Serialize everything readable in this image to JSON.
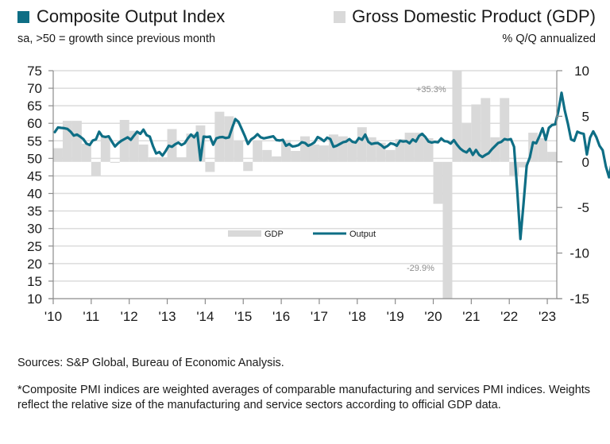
{
  "header": {
    "left_title": "Composite Output Index",
    "left_subtitle": "sa, >50 = growth since previous month",
    "right_title": "Gross Domestic Product (GDP)",
    "right_subtitle": "% Q/Q annualized"
  },
  "footer": {
    "sources": "Sources: S&P Global, Bureau of Economic Analysis.",
    "note": "*Composite PMI indices are weighted averages of comparable manufacturing and services PMI indices. Weights reflect the relative size of the manufacturing and service sectors according to official GDP data."
  },
  "colors": {
    "output": "#0e6e85",
    "gdp": "#d9d9d9",
    "grid": "#dcdcdc",
    "axis": "#8c8c8c"
  },
  "chart_data": {
    "type": "bar+line",
    "title": "Composite Output Index vs Gross Domestic Product (GDP)",
    "legend": [
      "GDP",
      "Output"
    ],
    "legend_placement": "center",
    "grid": true,
    "x_tick_labels": [
      "'10",
      "'11",
      "'12",
      "'13",
      "'14",
      "'15",
      "'16",
      "'17",
      "'18",
      "'19",
      "'20",
      "'21",
      "'22",
      "'23"
    ],
    "left_axis": {
      "label": "Composite Output Index (sa, >50 = growth)",
      "ylim": [
        10,
        75
      ],
      "ticks": [
        75,
        70,
        65,
        60,
        55,
        50,
        45,
        40,
        35,
        30,
        25,
        20,
        15,
        10
      ]
    },
    "right_axis": {
      "label": "GDP % Q/Q annualized",
      "ylim": [
        -15,
        10
      ],
      "ticks": [
        10,
        5,
        0,
        -5,
        -10,
        -15
      ]
    },
    "annotations": [
      {
        "text": "+35.3%",
        "refers_to": "GDP 2020 Q3"
      },
      {
        "text": "-29.9%",
        "refers_to": "GDP 2020 Q2"
      }
    ],
    "series": [
      {
        "name": "GDP",
        "kind": "bar",
        "axis": "right",
        "frequency": "quarterly",
        "start": "2010-Q1",
        "values": [
          1.5,
          4.5,
          4.5,
          2.0,
          -1.5,
          2.9,
          -0.1,
          4.6,
          3.4,
          1.9,
          0.5,
          0.5,
          3.6,
          0.5,
          3.1,
          4.0,
          -1.1,
          5.5,
          5.0,
          2.3,
          -1.0,
          2.3,
          1.3,
          0.6,
          2.4,
          1.2,
          2.8,
          1.9,
          1.8,
          3.0,
          2.8,
          2.3,
          3.8,
          2.7,
          2.1,
          1.3,
          2.5,
          3.2,
          3.2,
          2.6,
          -4.6,
          -29.9,
          35.3,
          4.2,
          6.3,
          7.0,
          2.7,
          7.0,
          -1.6,
          -0.6,
          3.2,
          2.6,
          1.1
        ],
        "label_overrides": {
          "2020-Q2": "-29.9%",
          "2020-Q3": "+35.3%"
        }
      },
      {
        "name": "Output",
        "kind": "line",
        "axis": "left",
        "frequency": "monthly",
        "start": "2010-01",
        "values": [
          57.5,
          58.8,
          58.7,
          58.6,
          58.4,
          57.6,
          56.5,
          56.8,
          56.2,
          55.5,
          54.2,
          53.8,
          55.1,
          55.4,
          57.6,
          56.3,
          56.1,
          56.3,
          54.8,
          53.4,
          54.3,
          55.0,
          55.5,
          56.0,
          55.3,
          56.5,
          57.6,
          57.0,
          58.2,
          56.6,
          56.2,
          53.5,
          51.4,
          51.8,
          50.8,
          52.1,
          53.6,
          53.3,
          54.0,
          54.5,
          53.8,
          54.3,
          55.7,
          56.8,
          56.0,
          57.3,
          49.5,
          56.2,
          56.1,
          56.2,
          53.9,
          55.7,
          56.0,
          56.1,
          55.8,
          56.0,
          58.7,
          61.2,
          60.4,
          58.4,
          56.4,
          54.1,
          55.4,
          56.0,
          56.9,
          56.0,
          55.7,
          55.9,
          56.1,
          56.3,
          55.2,
          55.1,
          55.3,
          53.6,
          54.1,
          53.4,
          53.5,
          53.8,
          54.6,
          54.4,
          53.6,
          54.0,
          54.6,
          56.1,
          55.6,
          54.9,
          55.9,
          55.5,
          53.3,
          53.6,
          54.1,
          54.6,
          54.8,
          55.5,
          54.7,
          54.5,
          55.8,
          55.3,
          56.8,
          54.7,
          54.1,
          54.3,
          54.4,
          53.8,
          53.0,
          53.5,
          54.3,
          54.1,
          53.6,
          55.0,
          54.8,
          54.9,
          54.3,
          55.4,
          54.8,
          56.4,
          57.0,
          56.1,
          54.8,
          54.5,
          54.7,
          54.6,
          55.7,
          54.9,
          54.8,
          54.2,
          55.2,
          53.9,
          52.8,
          52.1,
          51.7,
          52.7,
          51.0,
          52.4,
          51.0,
          50.4,
          51.0,
          51.5,
          52.6,
          53.5,
          54.4,
          54.7,
          55.5,
          55.3,
          55.5,
          53.3,
          40.9,
          27.0,
          37.0,
          47.9,
          50.3,
          54.6,
          54.3,
          56.3,
          58.6,
          55.3,
          58.7,
          59.5,
          59.7,
          63.5,
          68.7,
          63.7,
          59.9,
          55.4,
          55.0,
          57.6,
          57.2,
          57.0,
          51.1,
          55.9,
          57.7,
          56.0,
          53.6,
          52.3,
          47.7,
          44.6,
          49.5,
          48.2,
          46.4,
          45.0,
          46.8,
          50.1,
          52.3
        ],
        "note": "monthly line from Jan 2010"
      }
    ]
  }
}
